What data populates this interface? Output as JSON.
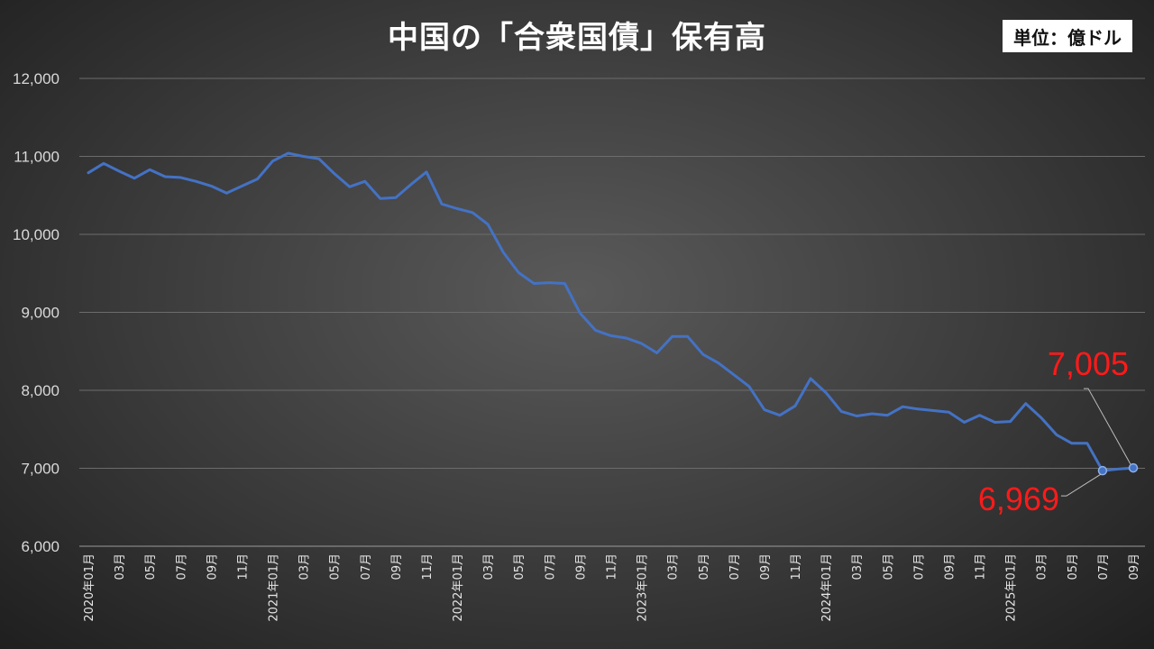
{
  "header": {
    "title": "中国の「合衆国債」保有高",
    "unit": "単位：億ドル"
  },
  "chart_data": {
    "type": "line",
    "title": "中国の「合衆国債」保有高",
    "unit": "単位：億ドル",
    "ylim": [
      6000,
      12000
    ],
    "y_ticks": [
      "6,000",
      "7,000",
      "8,000",
      "9,000",
      "10,000",
      "11,000",
      "12,000"
    ],
    "grid": true,
    "legend": "none",
    "x_labels": [
      "2020年01月",
      "03月",
      "05月",
      "07月",
      "09月",
      "11月",
      "2021年01月",
      "03月",
      "05月",
      "07月",
      "09月",
      "11月",
      "2022年01月",
      "03月",
      "05月",
      "07月",
      "09月",
      "11月",
      "2023年01月",
      "03月",
      "05月",
      "07月",
      "09月",
      "11月",
      "2024年01月",
      "03月",
      "05月",
      "07月",
      "09月",
      "11月",
      "2025年01月",
      "03月",
      "05月",
      "07月",
      "09月"
    ],
    "series": [
      {
        "color": "#4472c4",
        "values": [
          10790,
          10910,
          10810,
          10720,
          10830,
          10740,
          10730,
          10680,
          10620,
          10530,
          10620,
          10710,
          10940,
          11040,
          11000,
          10970,
          10780,
          10610,
          10680,
          10460,
          10470,
          10640,
          10800,
          10390,
          10330,
          10280,
          10130,
          9770,
          9510,
          9370,
          9380,
          9370,
          8990,
          8770,
          8700,
          8670,
          8600,
          8480,
          8690,
          8690,
          8460,
          8350,
          8200,
          8050,
          7750,
          7680,
          7800,
          8150,
          7970,
          7730,
          7670,
          7700,
          7680,
          7790,
          7760,
          7740,
          7720,
          7590,
          7680,
          7590,
          7600,
          7830,
          7650,
          7430,
          7320,
          7320,
          6969,
          6990,
          7005
        ]
      }
    ],
    "annotations": [
      {
        "label": "7,005",
        "value": 7005
      },
      {
        "label": "6,969",
        "value": 6969
      }
    ]
  }
}
